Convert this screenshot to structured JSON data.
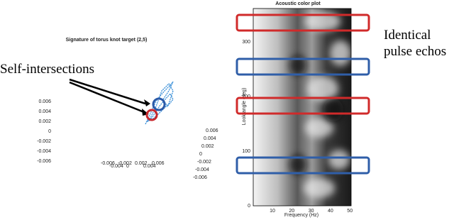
{
  "left_plot": {
    "title": "Signature of torus knot target (2,5)",
    "z_ticks": [
      "0.006",
      "0.004",
      "0.002",
      "0",
      "-0.002",
      "-0.004",
      "-0.006"
    ],
    "x_ticks": [
      "-0.006",
      "-0.004",
      "-0.002",
      "0",
      "0.002",
      "0.004",
      "0.006"
    ],
    "y_ticks": [
      "0.006",
      "0.004",
      "0.002",
      "0",
      "-0.002",
      "-0.004",
      "-0.006"
    ]
  },
  "annotations": {
    "self_intersections": "Self-intersections",
    "identical": [
      "Identical",
      "pulse echos"
    ]
  },
  "right_plot": {
    "title": "Acoustic color plot",
    "y_label": "Look angle (deg)",
    "x_label": "Frequency (Hz)",
    "y_ticks": [
      "0",
      "100",
      "200",
      "300"
    ],
    "x_ticks": [
      "10",
      "20",
      "30",
      "40",
      "50"
    ]
  }
}
